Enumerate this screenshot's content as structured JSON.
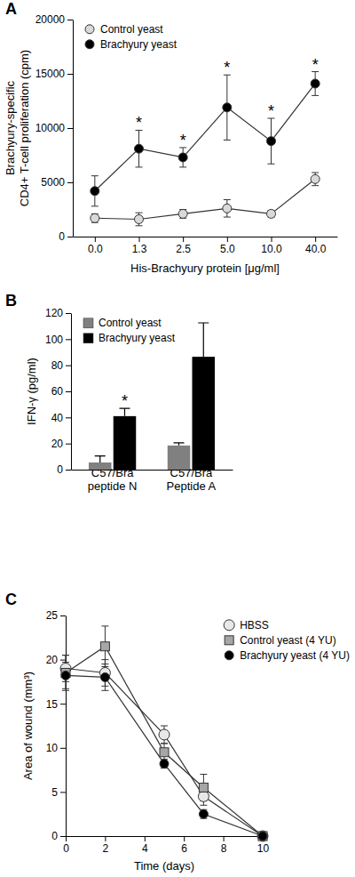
{
  "chart_data": [
    {
      "type": "line",
      "title": "A",
      "x_label": "His-Brachyury protein [μg/ml]",
      "y_label": [
        "Brachyury-specific",
        "CD4+ T-cell proliferation (cpm)"
      ],
      "categories": [
        "0.0",
        "1.3",
        "2.5",
        "5.0",
        "10.0",
        "40.0"
      ],
      "ylim": [
        0,
        20000
      ],
      "yticks": [
        0,
        5000,
        10000,
        15000,
        20000
      ],
      "grid": false,
      "legend": "top-left",
      "series": [
        {
          "name": "Control yeast",
          "color": "#d9d9d9",
          "marker": "circle",
          "values": [
            1700,
            1600,
            2100,
            2600,
            2100,
            5300
          ],
          "errors": [
            400,
            600,
            400,
            800,
            300,
            600
          ]
        },
        {
          "name": "Brachyury yeast",
          "color": "#000000",
          "marker": "circle",
          "values": [
            4200,
            8100,
            7300,
            11900,
            8800,
            14100
          ],
          "errors": [
            1400,
            1700,
            900,
            3000,
            2100,
            1100
          ]
        }
      ],
      "annotations": [
        {
          "text": "*",
          "x": "1.3"
        },
        {
          "text": "*",
          "x": "2.5"
        },
        {
          "text": "*",
          "x": "5.0"
        },
        {
          "text": "*",
          "x": "10.0"
        },
        {
          "text": "*",
          "x": "40.0"
        }
      ]
    },
    {
      "type": "bar",
      "title": "B",
      "y_label": "IFN-γ (pg/ml)",
      "categories": [
        "C57/Bra peptide N",
        "C57/Bra Peptide A"
      ],
      "ylim": [
        0,
        120
      ],
      "yticks": [
        0,
        20,
        40,
        60,
        80,
        100,
        120
      ],
      "grid": false,
      "legend": "top-left",
      "series": [
        {
          "name": "Control yeast",
          "color": "#808080",
          "values": [
            5.5,
            18.5
          ],
          "errors": [
            5,
            2
          ]
        },
        {
          "name": "Brachyury yeast",
          "color": "#000000",
          "values": [
            41,
            86.5
          ],
          "errors": [
            6,
            26
          ]
        }
      ],
      "annotations": [
        {
          "text": "*",
          "x": "C57/Bra peptide N"
        }
      ]
    },
    {
      "type": "line",
      "title": "C",
      "x_label": "Time (days)",
      "y_label": "Area of wound (mm³)",
      "x": [
        0,
        2,
        5,
        7,
        10
      ],
      "xlim": [
        0,
        10
      ],
      "xticks": [
        0,
        2,
        4,
        6,
        8,
        10
      ],
      "ylim": [
        0,
        25
      ],
      "yticks": [
        0,
        5,
        10,
        15,
        20,
        25
      ],
      "grid": false,
      "legend": "top-right",
      "series": [
        {
          "name": "HBSS",
          "color": "#e8e8e8",
          "marker": "circle",
          "values": [
            19,
            18.5,
            11.5,
            4.5,
            0
          ],
          "errors": [
            1.5,
            1.5,
            1,
            1,
            0
          ]
        },
        {
          "name": "Control yeast (4 YU)",
          "color": "#a6a6a6",
          "marker": "square",
          "values": [
            18.5,
            21.5,
            9.5,
            5.5,
            0
          ],
          "errors": [
            2,
            2.3,
            1,
            1.5,
            0
          ]
        },
        {
          "name": "Brachyury yeast (4 YU)",
          "color": "#000000",
          "marker": "circle",
          "values": [
            18.2,
            18,
            8.2,
            2.5,
            0
          ],
          "errors": [
            1.5,
            1.5,
            0.5,
            0.5,
            0
          ]
        }
      ]
    }
  ]
}
